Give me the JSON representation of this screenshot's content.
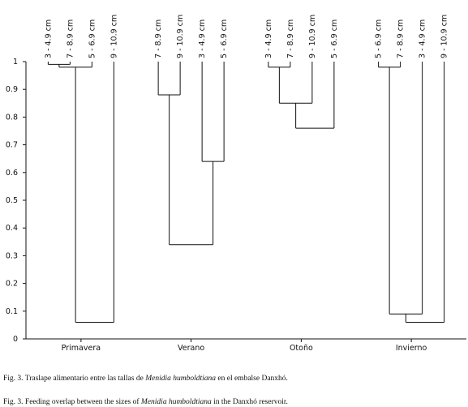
{
  "chart_data": {
    "type": "dendrogram",
    "ylim": [
      0,
      1
    ],
    "yticks": [
      0,
      0.1,
      0.2,
      0.3,
      0.4,
      0.5,
      0.6,
      0.7,
      0.8,
      0.9,
      1
    ],
    "groups": [
      {
        "name": "Primavera",
        "tree": {
          "height": 0.06,
          "children": [
            {
              "height": 0.98,
              "children": [
                {
                  "height": 0.99,
                  "children": [
                    "3 - 4.9 cm",
                    "7 - 8.9 cm"
                  ]
                },
                "5 - 6.9 cm"
              ]
            },
            "9 - 10.9 cm"
          ]
        }
      },
      {
        "name": "Verano",
        "tree": {
          "height": 0.34,
          "children": [
            {
              "height": 0.88,
              "children": [
                "7 - 8.9 cm",
                "9 - 10.9 cm"
              ]
            },
            {
              "height": 0.64,
              "children": [
                "3 - 4.9 cm",
                "5 - 6.9 cm"
              ]
            }
          ]
        }
      },
      {
        "name": "Otoño",
        "tree": {
          "height": 0.76,
          "children": [
            {
              "height": 0.85,
              "children": [
                {
                  "height": 0.98,
                  "children": [
                    "3 - 4.9 cm",
                    "7 - 8.9 cm"
                  ]
                },
                "9 - 10.9 cm"
              ]
            },
            "5 - 6.9 cm"
          ]
        }
      },
      {
        "name": "Invierno",
        "tree": {
          "height": 0.06,
          "children": [
            {
              "height": 0.09,
              "children": [
                {
                  "height": 0.98,
                  "children": [
                    "5 - 6.9 cm",
                    "7 - 8.9 cm"
                  ]
                },
                "3 - 4.9 cm"
              ]
            },
            "9 - 10.9 cm"
          ]
        }
      }
    ]
  },
  "captions": [
    [
      "Fig. 3.  Traslape alimentario entre las tallas de ",
      "Menidia humboldtiana",
      " en el embalse Danxhó."
    ],
    [
      "Fig. 3.  Feeding overlap between the sizes of ",
      "Menidia humboldtiana",
      "  in the Danxhó reservoir."
    ]
  ]
}
